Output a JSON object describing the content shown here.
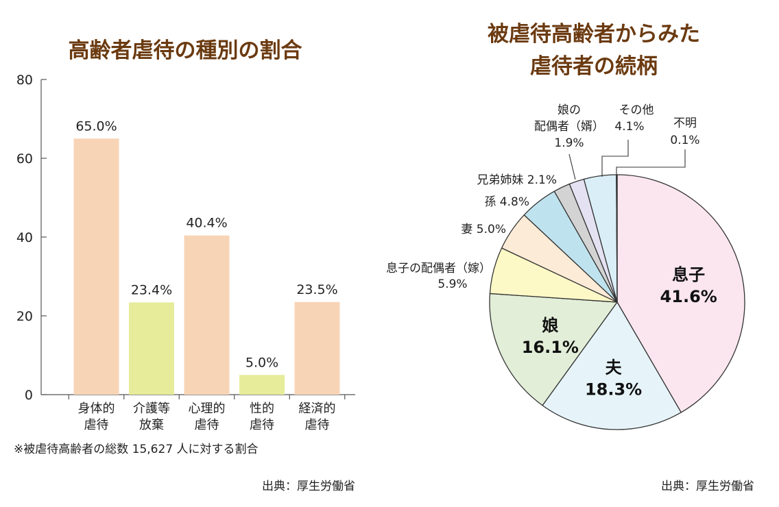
{
  "left": {
    "title": "高齢者虐待の種別の割合",
    "footnote": "※被虐待高齢者の総数 15,627 人に対する割合",
    "source": "出典：厚生労働省"
  },
  "right": {
    "title_lines": [
      "被虐待高齢者からみた",
      "虐待者の続柄"
    ],
    "source": "出典：厚生労働省"
  },
  "colors": {
    "title": "#6b3a10",
    "axis": "#555555",
    "bar_peach": "#f8d4b6",
    "bar_yellow": "#e6ec9a",
    "pie_stroke": "#333333"
  },
  "chart_data": [
    {
      "type": "bar",
      "title": "高齢者虐待の種別の割合",
      "categories": [
        [
          "身体的",
          "虐待"
        ],
        [
          "介護等",
          "放棄"
        ],
        [
          "心理的",
          "虐待"
        ],
        [
          "性的",
          "虐待"
        ],
        [
          "経済的",
          "虐待"
        ]
      ],
      "values": [
        65.0,
        23.4,
        40.4,
        5.0,
        23.5
      ],
      "value_labels": [
        "65.0%",
        "23.4%",
        "40.4%",
        "5.0%",
        "23.5%"
      ],
      "bar_colors": [
        "#f8d4b6",
        "#e6ec9a",
        "#f8d4b6",
        "#e6ec9a",
        "#f8d4b6"
      ],
      "ylim": [
        0,
        80
      ],
      "yticks": [
        0,
        20,
        40,
        60,
        80
      ],
      "grid": false
    },
    {
      "type": "pie",
      "title": "被虐待高齢者からみた虐待者の続柄",
      "start": "12 o'clock, clockwise",
      "slices": [
        {
          "label": "息子",
          "value": 41.6,
          "value_label": "41.6%",
          "color": "#fbe6ef",
          "inside": true
        },
        {
          "label": "夫",
          "value": 18.3,
          "value_label": "18.3%",
          "color": "#e6f4f9",
          "inside": true
        },
        {
          "label": "娘",
          "value": 16.1,
          "value_label": "16.1%",
          "color": "#e2eed8",
          "inside": true
        },
        {
          "label": "息子の配偶者（嫁）",
          "value": 5.9,
          "value_label": "5.9%",
          "color": "#fdf9c6",
          "inside": false
        },
        {
          "label": "妻",
          "value": 5.0,
          "value_label": "5.0%",
          "color": "#fcebd6",
          "inside": false
        },
        {
          "label": "孫",
          "value": 4.8,
          "value_label": "4.8%",
          "color": "#bfe3ee",
          "inside": false
        },
        {
          "label": "兄弟姉妹",
          "value": 2.1,
          "value_label": "2.1%",
          "color": "#d3d3d3",
          "inside": false
        },
        {
          "label": "娘の配偶者（婿）",
          "value": 1.9,
          "value_label": "1.9%",
          "color": "#e4e2f2",
          "inside": false
        },
        {
          "label": "その他",
          "value": 4.1,
          "value_label": "4.1%",
          "color": "#d9eef7",
          "inside": false
        },
        {
          "label": "不明",
          "value": 0.1,
          "value_label": "0.1%",
          "color": "#f3f3f3",
          "inside": false
        }
      ]
    }
  ]
}
